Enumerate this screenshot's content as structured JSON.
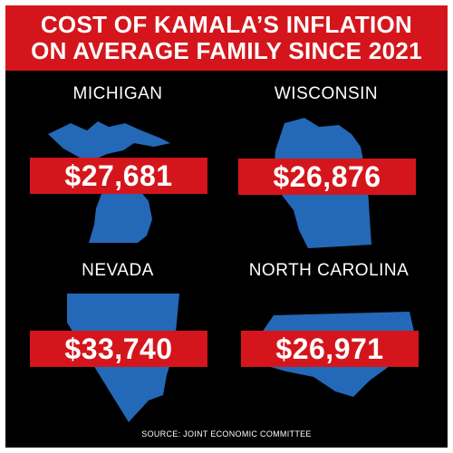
{
  "header": {
    "line1": "COST OF KAMALA’S INFLATION",
    "line2": "ON AVERAGE FAMILY SINCE 2021"
  },
  "states": [
    {
      "name": "MICHIGAN",
      "value": "$27,681"
    },
    {
      "name": "WISCONSIN",
      "value": "$26,876"
    },
    {
      "name": "NEVADA",
      "value": "$33,740"
    },
    {
      "name": "NORTH CAROLINA",
      "value": "$26,971"
    }
  ],
  "source": "SOURCE: JOINT ECONOMIC COMMITTEE",
  "colors": {
    "red": "#d4161c",
    "blue": "#2468b8",
    "background": "#000000"
  }
}
